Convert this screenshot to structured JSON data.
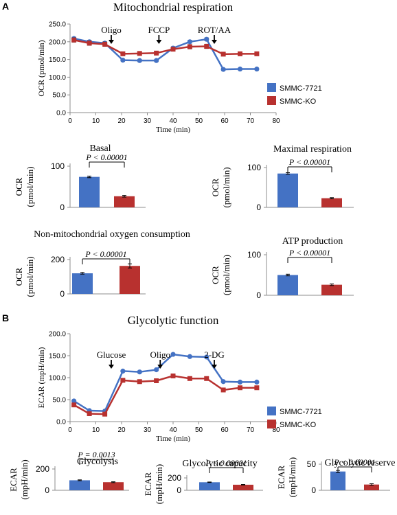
{
  "panel_labels": {
    "a": "A",
    "b": "B"
  },
  "colors": {
    "series1": "#4472C4",
    "series2": "#B8312F",
    "axis": "#8c8c8c"
  },
  "chart_data": [
    {
      "id": "ocr-line",
      "type": "line",
      "title": "Mitochondrial respiration",
      "xlabel": "Time (min)",
      "ylabel": "OCR (pmol/min)",
      "xlim": [
        0,
        80
      ],
      "ylim": [
        0,
        250
      ],
      "xticks": [
        "0",
        "10",
        "20",
        "30",
        "40",
        "50",
        "60",
        "70",
        "80"
      ],
      "yticks": [
        "0.0",
        "50.0",
        "100.0",
        "150.0",
        "200.0",
        "250.0"
      ],
      "legend_position": "right",
      "annotations": [
        {
          "text": "Oligo",
          "x": 16
        },
        {
          "text": "FCCP",
          "x": 34.5
        },
        {
          "text": "ROT/AA",
          "x": 56
        }
      ],
      "series": [
        {
          "name": "SMMC-7721",
          "x": [
            1.5,
            7.5,
            13.5,
            20.5,
            27,
            33.5,
            40,
            46.5,
            53,
            59.5,
            66,
            72.5
          ],
          "values": [
            209,
            200,
            196,
            148,
            147,
            147,
            182,
            200,
            207,
            122,
            123,
            123
          ],
          "errors": [
            4,
            4,
            4,
            3,
            3,
            3,
            4,
            4,
            4,
            3,
            3,
            3
          ]
        },
        {
          "name": "SMMC-KO",
          "x": [
            1.5,
            7.5,
            13.5,
            20.5,
            27,
            33.5,
            40,
            46.5,
            53,
            59.5,
            66,
            72.5
          ],
          "values": [
            205,
            196,
            193,
            166,
            167,
            168,
            179,
            186,
            187,
            165,
            166,
            166
          ],
          "errors": [
            6,
            6,
            6,
            5,
            5,
            5,
            5,
            6,
            6,
            5,
            5,
            5
          ]
        }
      ]
    },
    {
      "id": "basal",
      "type": "bar",
      "title": "Basal",
      "ylabel": "OCR (pmol/min)",
      "ylim": [
        0,
        100
      ],
      "yticks": [
        "0",
        "100"
      ],
      "significance": "P < 0.00001",
      "values": [
        74,
        27
      ],
      "errors": [
        2,
        2
      ]
    },
    {
      "id": "maximal",
      "type": "bar",
      "title": "Maximal respiration",
      "ylabel": "OCR (pmol/min)",
      "ylim": [
        0,
        100
      ],
      "yticks": [
        "0",
        "100"
      ],
      "significance": "P < 0.00001",
      "values": [
        85,
        23
      ],
      "errors": [
        2,
        1.5
      ]
    },
    {
      "id": "nonmito",
      "type": "bar",
      "title": "Non-mitochondrial oxygen consumption",
      "ylabel": "OCR (pmol/min)",
      "ylim": [
        0,
        200
      ],
      "yticks": [
        "0",
        "200"
      ],
      "significance": "P < 0.00001",
      "values": [
        120,
        163
      ],
      "errors": [
        5,
        12
      ]
    },
    {
      "id": "atp",
      "type": "bar",
      "title": "ATP production",
      "ylabel": "OCR (pmol/min)",
      "ylim": [
        0,
        100
      ],
      "yticks": [
        "0",
        "100"
      ],
      "significance": "P < 0.00001",
      "values": [
        50,
        26
      ],
      "errors": [
        2,
        2
      ]
    },
    {
      "id": "ecar-line",
      "type": "line",
      "title": "Glycolytic function",
      "xlabel": "Time (min)",
      "ylabel": "ECAR (mpH/min)",
      "xlim": [
        0,
        80
      ],
      "ylim": [
        0,
        200
      ],
      "xticks": [
        "0",
        "10",
        "20",
        "30",
        "40",
        "50",
        "60",
        "70",
        "80"
      ],
      "yticks": [
        "0.0",
        "50.0",
        "100.0",
        "150.0",
        "200.0"
      ],
      "legend_position": "right",
      "annotations": [
        {
          "text": "Glucose",
          "x": 16
        },
        {
          "text": "Oligo",
          "x": 35
        },
        {
          "text": "2-DG",
          "x": 56
        }
      ],
      "series": [
        {
          "name": "SMMC-7721",
          "x": [
            1.5,
            7.5,
            13.5,
            20.5,
            27,
            33.5,
            40,
            46.5,
            53,
            59.5,
            66,
            72.5
          ],
          "values": [
            47,
            25,
            24,
            115,
            113,
            118,
            153,
            148,
            147,
            91,
            90,
            90
          ]
        },
        {
          "name": "SMMC-KO",
          "x": [
            1.5,
            7.5,
            13.5,
            20.5,
            27,
            33.5,
            40,
            46.5,
            53,
            59.5,
            66,
            72.5
          ],
          "values": [
            38,
            18,
            17,
            94,
            91,
            93,
            104,
            98,
            98,
            72,
            77,
            77
          ]
        }
      ]
    },
    {
      "id": "glycolysis",
      "type": "bar",
      "title": "Glycolysis",
      "ylabel": "ECAR (mpH/min)",
      "ylim": [
        0,
        200
      ],
      "yticks": [
        "0",
        "200"
      ],
      "significance": "P = 0.0013",
      "values": [
        94,
        76
      ],
      "errors": [
        4,
        4
      ]
    },
    {
      "id": "capacity",
      "type": "bar",
      "title": "Glycolytic capacity",
      "ylabel": "ECAR (mpH/min)",
      "ylim": [
        0,
        200
      ],
      "yticks": [
        "0",
        "200"
      ],
      "significance": "P < 0.00001",
      "values": [
        130,
        90
      ],
      "errors": [
        4,
        4
      ]
    },
    {
      "id": "reserve",
      "type": "bar",
      "title": "Glycolytic reserve",
      "ylabel": "ECAR (mpH/min)",
      "ylim": [
        0,
        50
      ],
      "yticks": [
        "0",
        "50"
      ],
      "significance": "P < 0.00001",
      "values": [
        36,
        11
      ],
      "errors": [
        2,
        1.5
      ]
    }
  ]
}
